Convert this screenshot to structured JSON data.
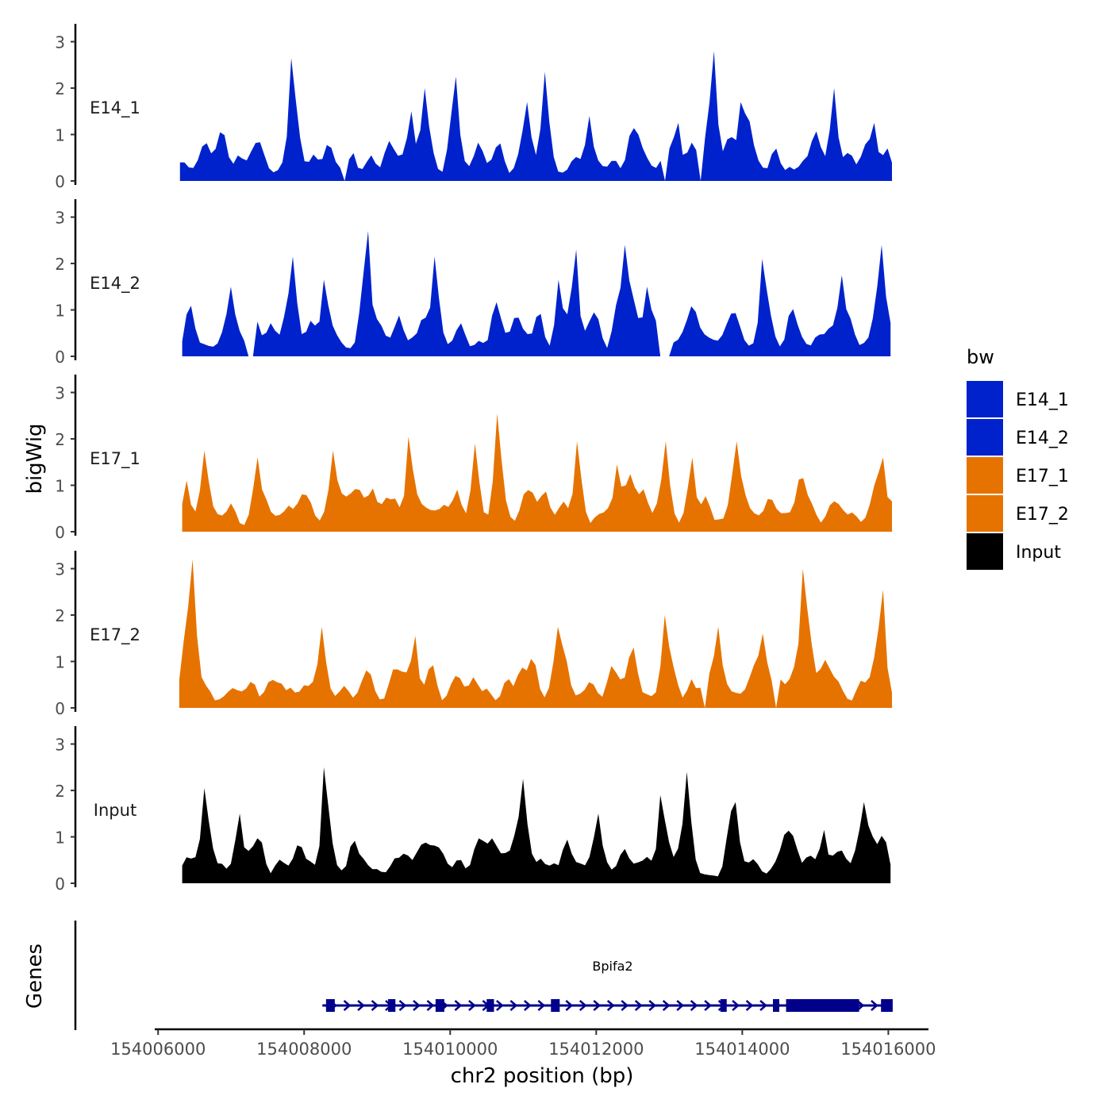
{
  "chart_data": {
    "type": "area",
    "title": "",
    "ylabel": "bigWig",
    "xlabel": "chr2 position (bp)",
    "xlim": [
      154005900,
      154016550
    ],
    "ylim": [
      0,
      3.3
    ],
    "y_ticks": [
      "0",
      "1",
      "2",
      "3"
    ],
    "x_ticks": [
      {
        "value": 154006000,
        "label": "154006000"
      },
      {
        "value": 154008000,
        "label": "154008000"
      },
      {
        "value": 154010000,
        "label": "154010000"
      },
      {
        "value": 154012000,
        "label": "154012000"
      },
      {
        "value": 154014000,
        "label": "154014000"
      },
      {
        "value": 154016000,
        "label": "154016000"
      }
    ],
    "legend": {
      "title": "bw",
      "position": "right",
      "entries": [
        {
          "label": "E14_1",
          "color": "#0022CC"
        },
        {
          "label": "E14_2",
          "color": "#0022CC"
        },
        {
          "label": "E17_1",
          "color": "#E67300"
        },
        {
          "label": "E17_2",
          "color": "#E67300"
        },
        {
          "label": "Input",
          "color": "#000000"
        }
      ]
    },
    "series": [
      {
        "name": "E14_1",
        "color": "#0022CC",
        "start": 154006300,
        "end": 154016050,
        "n": 160,
        "seed": 11,
        "peaks": [
          [
            154007850,
            2.65
          ],
          [
            154008650,
            0.6
          ],
          [
            154008950,
            0.55
          ],
          [
            154009450,
            1.5
          ],
          [
            154009650,
            2.0
          ],
          [
            154010050,
            2.25
          ],
          [
            154011050,
            1.7
          ],
          [
            154011300,
            2.35
          ],
          [
            154011900,
            1.4
          ],
          [
            154012600,
            1.0
          ],
          [
            154013100,
            1.25
          ],
          [
            154013600,
            2.8
          ],
          [
            154014000,
            1.7
          ],
          [
            154015250,
            2.0
          ],
          [
            154015800,
            1.25
          ]
        ],
        "gaps": [
          [
            154008520,
            154008560
          ],
          [
            154012900,
            154012950
          ],
          [
            154013380,
            154013440
          ]
        ]
      },
      {
        "name": "E14_2",
        "color": "#0022CC",
        "start": 154006330,
        "end": 154016030,
        "n": 160,
        "seed": 23,
        "peaks": [
          [
            154007000,
            1.5
          ],
          [
            154007850,
            2.15
          ],
          [
            154008300,
            1.65
          ],
          [
            154008850,
            2.7
          ],
          [
            154009800,
            2.15
          ],
          [
            154011500,
            1.65
          ],
          [
            154011700,
            2.3
          ],
          [
            154012400,
            2.4
          ],
          [
            154012700,
            1.5
          ],
          [
            154014300,
            2.1
          ],
          [
            154015350,
            1.75
          ],
          [
            154015900,
            2.4
          ]
        ],
        "gaps": [
          [
            154007200,
            154007350
          ],
          [
            154012850,
            154013000
          ]
        ]
      },
      {
        "name": "E17_1",
        "color": "#E67300",
        "start": 154006330,
        "end": 154016050,
        "n": 160,
        "seed": 37,
        "peaks": [
          [
            154006650,
            1.75
          ],
          [
            154007350,
            1.6
          ],
          [
            154008400,
            1.75
          ],
          [
            154009450,
            2.05
          ],
          [
            154010350,
            1.9
          ],
          [
            154010660,
            2.55
          ],
          [
            154011750,
            1.95
          ],
          [
            154012300,
            1.45
          ],
          [
            154012950,
            1.95
          ],
          [
            154013300,
            1.6
          ],
          [
            154013900,
            1.95
          ],
          [
            154015900,
            1.6
          ]
        ],
        "gaps": []
      },
      {
        "name": "E17_2",
        "color": "#E67300",
        "start": 154006290,
        "end": 154016050,
        "n": 160,
        "seed": 53,
        "peaks": [
          [
            154006450,
            3.2
          ],
          [
            154007650,
            0.55
          ],
          [
            154008250,
            1.75
          ],
          [
            154009500,
            1.55
          ],
          [
            154011500,
            1.75
          ],
          [
            154012950,
            2.0
          ],
          [
            154013650,
            1.75
          ],
          [
            154014300,
            1.6
          ],
          [
            154014850,
            3.0
          ],
          [
            154015900,
            2.55
          ]
        ],
        "gaps": [
          [
            154013450,
            154013500
          ],
          [
            154014450,
            154014500
          ]
        ]
      },
      {
        "name": "Input",
        "color": "#000000",
        "start": 154006330,
        "end": 154016030,
        "n": 160,
        "seed": 71,
        "peaks": [
          [
            154006650,
            2.05
          ],
          [
            154007100,
            1.5
          ],
          [
            154008300,
            2.5
          ],
          [
            154011000,
            2.25
          ],
          [
            154012000,
            1.5
          ],
          [
            154012900,
            1.9
          ],
          [
            154013250,
            2.4
          ],
          [
            154013900,
            1.75
          ],
          [
            154015100,
            1.15
          ],
          [
            154015650,
            1.75
          ]
        ],
        "gaps": []
      }
    ],
    "genes_track": {
      "label": "Genes",
      "gene_name": "Bpifa2",
      "color": "#00008B",
      "start": 154008250,
      "end": 154016050,
      "exons": [
        [
          154008300,
          154008420
        ],
        [
          154009150,
          154009250
        ],
        [
          154009800,
          154009920
        ],
        [
          154010500,
          154010600
        ],
        [
          154011380,
          154011500
        ],
        [
          154013700,
          154013780
        ],
        [
          154014420,
          154014500
        ],
        [
          154014600,
          154015600
        ],
        [
          154015900,
          154016060
        ]
      ]
    }
  }
}
